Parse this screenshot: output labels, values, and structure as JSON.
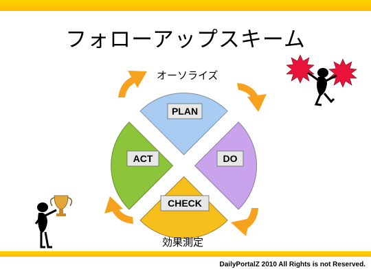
{
  "title": "フォローアップスキーム",
  "cycle": {
    "plan": "PLAN",
    "do": "DO",
    "check": "CHECK",
    "act": "ACT"
  },
  "captions": {
    "top": "オーソライズ",
    "bottom": "効果測定"
  },
  "footer": "DailyPortalZ 2010  All Rights is not Reserved.",
  "colors": {
    "accent_bar": "#ffc400",
    "plan": "#a9cdf2",
    "do": "#c9a3ec",
    "check": "#f7bf1b",
    "act": "#8cc43a",
    "arrows": "#f7a21e",
    "starburst": "#e8123a"
  },
  "icons": [
    "cycle-arrow-icon",
    "starburst-icon",
    "stick-figure-icon",
    "trophy-icon"
  ]
}
